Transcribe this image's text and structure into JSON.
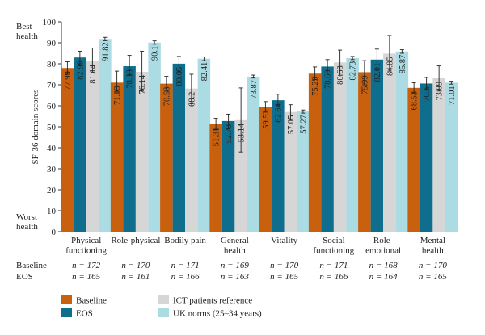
{
  "chart_data": {
    "type": "bar",
    "ylabel": "SF-36 domain scores",
    "ylim": [
      0,
      100
    ],
    "yticks": [
      0,
      10,
      20,
      30,
      40,
      50,
      60,
      70,
      80,
      90,
      100
    ],
    "y_top_label": [
      "Best",
      "health"
    ],
    "y_bottom_label": [
      "Worst",
      "health"
    ],
    "categories": [
      [
        "Physical",
        "functioning"
      ],
      [
        "Role-physical"
      ],
      [
        "Bodily pain"
      ],
      [
        "General",
        "health"
      ],
      [
        "Vitality"
      ],
      [
        "Social",
        "functioning"
      ],
      [
        "Role-",
        "emotional"
      ],
      [
        "Mental",
        "health"
      ]
    ],
    "series": [
      {
        "name": "Baseline",
        "color": "#c8600e",
        "values": [
          77.99,
          71.03,
          70.53,
          51.31,
          59.53,
          75.29,
          75.99,
          68.53
        ],
        "labels": [
          "77.99",
          "71.03",
          "70.53",
          "51.31",
          "59.53",
          "75.29",
          "75.99",
          "68.53"
        ],
        "err_low": [
          75,
          66.5,
          67,
          48.5,
          57,
          72.5,
          70,
          66
        ],
        "err_high": [
          81,
          76.5,
          74,
          54,
          62,
          78.5,
          81.5,
          71
        ]
      },
      {
        "name": "EOS",
        "color": "#0f6e8e",
        "values": [
          82.99,
          78.83,
          80.05,
          52.73,
          62.64,
          78.69,
          82.01,
          70.6
        ],
        "labels": [
          "82.99",
          "78.83",
          "80.05",
          "52.73",
          "62.64",
          "78.69",
          "82.01",
          "70.6"
        ],
        "err_low": [
          80,
          74.5,
          76.5,
          49,
          60,
          75.5,
          77,
          68
        ],
        "err_high": [
          86,
          84,
          83.5,
          56,
          65.5,
          82,
          87,
          73.5
        ]
      },
      {
        "name": "ICT patients reference",
        "color": "#d6d6d6",
        "values": [
          81.14,
          76.14,
          68.2,
          53.14,
          57.05,
          80.68,
          84.85,
          73.09
        ],
        "labels": [
          "81.14",
          "76.14",
          "68.2",
          "53.14",
          "57.05",
          "80.68",
          "84.85",
          "73.09"
        ],
        "err_low": [
          76,
          67,
          61,
          38,
          53,
          74.5,
          76.5,
          67
        ],
        "err_high": [
          87.5,
          86,
          75,
          68.5,
          60.5,
          86.5,
          93.5,
          79
        ]
      },
      {
        "name": "UK norms (25–34 years)",
        "color": "#abdbe3",
        "values": [
          91.82,
          90.1,
          82.41,
          73.87,
          57.27,
          82.73,
          85.87,
          71.01
        ],
        "labels": [
          "91.82",
          "90.1",
          "82.41",
          "73.87",
          "57.27",
          "82.73",
          "85.87",
          "71.01"
        ],
        "err_low": [
          91,
          89.3,
          81.5,
          73.2,
          56.5,
          82,
          85,
          70.3
        ],
        "err_high": [
          92.6,
          90.9,
          83.3,
          74.6,
          58,
          83.5,
          86.7,
          71.7
        ]
      }
    ],
    "n_rows": [
      {
        "label": "Baseline",
        "values": [
          "n = 172",
          "n = 170",
          "n = 171",
          "n = 169",
          "n = 170",
          "n = 171",
          "n = 168",
          "n = 170"
        ]
      },
      {
        "label": "EOS",
        "values": [
          "n = 165",
          "n = 161",
          "n = 166",
          "n = 163",
          "n = 165",
          "n = 166",
          "n = 164",
          "n = 165"
        ]
      }
    ],
    "legend": [
      {
        "name": "Baseline",
        "color": "#c8600e"
      },
      {
        "name": "ICT patients reference",
        "color": "#d6d6d6"
      },
      {
        "name": "EOS",
        "color": "#0f6e8e"
      },
      {
        "name": "UK norms (25–34 years)",
        "color": "#abdbe3"
      }
    ],
    "grid": false,
    "legend_placement": "bottom-left"
  }
}
